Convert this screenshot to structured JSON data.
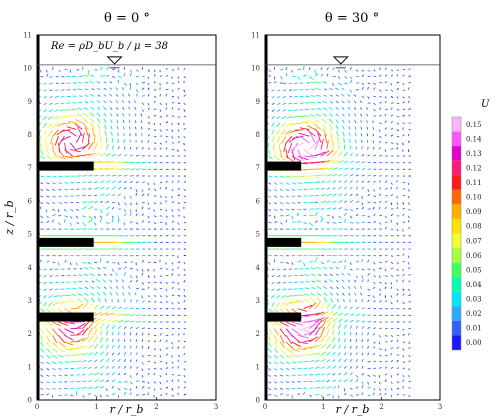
{
  "figure": {
    "panels": [
      {
        "title": "θ = 0 °",
        "annotation": "Re = ρD_bU_b / μ = 38",
        "blades": [
          {
            "z": 7.05,
            "r0": 0.0,
            "r1": 0.95
          },
          {
            "z": 4.75,
            "r0": 0.0,
            "r1": 0.95
          },
          {
            "z": 2.5,
            "r0": 0.0,
            "r1": 0.95
          }
        ]
      },
      {
        "title": "θ = 30 °",
        "annotation": "",
        "blades": [
          {
            "z": 7.05,
            "r0": 0.0,
            "r1": 0.62
          },
          {
            "z": 4.75,
            "r0": 0.0,
            "r1": 0.62
          },
          {
            "z": 2.5,
            "r0": 0.0,
            "r1": 0.62
          }
        ]
      }
    ]
  },
  "colorbar": {
    "title": "U",
    "levels": [
      "0.15",
      "0.14",
      "0.13",
      "0.12",
      "0.11",
      "0.10",
      "0.09",
      "0.08",
      "0.07",
      "0.06",
      "0.05",
      "0.04",
      "0.03",
      "0.02",
      "0.01",
      "0.00"
    ],
    "colors": [
      "#ffb3ff",
      "#ff55ff",
      "#e000c8",
      "#ff1a7a",
      "#ff1a1a",
      "#ff6a00",
      "#ffb000",
      "#ffe000",
      "#f0ff30",
      "#a8ff40",
      "#40ff60",
      "#00ffb0",
      "#00e8ff",
      "#30a8ff",
      "#3060ff",
      "#1818ff"
    ]
  },
  "chart_data": [
    {
      "type": "vector-field",
      "title": "θ = 0 °",
      "xlabel": "r / r_b",
      "ylabel": "z / r_b",
      "xlim": [
        0,
        3
      ],
      "ylim": [
        0,
        11
      ],
      "x_ticks": [
        "0",
        "1",
        "2",
        "3"
      ],
      "y_ticks": [
        "0",
        "1",
        "2",
        "3",
        "4",
        "5",
        "6",
        "7",
        "8",
        "9",
        "10",
        "11"
      ],
      "free_surface_z": 10.1,
      "impeller_blades_z": [
        7.05,
        4.75,
        2.5
      ],
      "blade_tip_r": 0.95,
      "circulation_centers": [
        {
          "r": 0.6,
          "z": 7.8,
          "u_max": 0.13
        },
        {
          "r": 0.55,
          "z": 2.2,
          "u_max": 0.13
        }
      ]
    },
    {
      "type": "vector-field",
      "title": "θ = 30 °",
      "xlabel": "r / r_b",
      "ylabel": "",
      "xlim": [
        0,
        3
      ],
      "ylim": [
        0,
        11
      ],
      "x_ticks": [
        "0",
        "1",
        "2",
        "3"
      ],
      "y_ticks": [
        "0",
        "1",
        "2",
        "3",
        "4",
        "5",
        "6",
        "7",
        "8",
        "9",
        "10",
        "11"
      ],
      "free_surface_z": 10.1,
      "impeller_blades_z": [
        7.05,
        4.75,
        2.5
      ],
      "blade_tip_r": 0.62,
      "circulation_centers": [
        {
          "r": 0.7,
          "z": 7.6,
          "u_max": 0.15
        },
        {
          "r": 0.6,
          "z": 2.2,
          "u_max": 0.15
        }
      ]
    }
  ]
}
